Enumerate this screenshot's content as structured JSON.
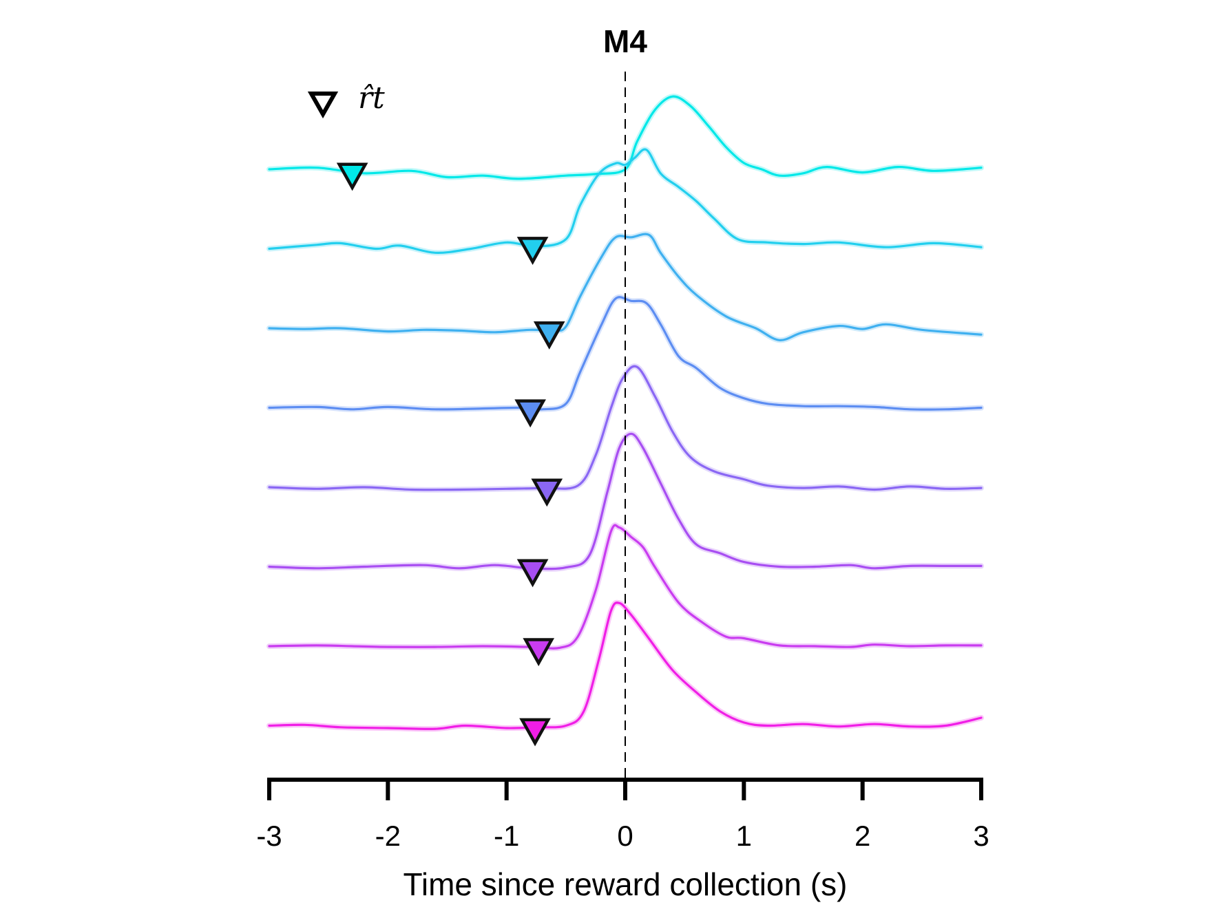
{
  "chart_data": {
    "type": "line",
    "title": "M4",
    "xlabel": "Time since reward collection (s)",
    "ylabel": "",
    "xlim": [
      -3,
      3
    ],
    "xticks": [
      -3,
      -2,
      -1,
      0,
      1,
      2,
      3
    ],
    "xtick_labels": [
      "-3",
      "-2",
      "-1",
      "0",
      "1",
      "2",
      "3"
    ],
    "reference_line": {
      "x": 0,
      "style": "dashed"
    },
    "legend": {
      "marker": "triangle-down-outline",
      "label": "r̂t",
      "placement": "top-left"
    },
    "grid": false,
    "layout": "stacked-offset",
    "series": [
      {
        "color": "#00e8e8",
        "marker_x": -2.3,
        "points": [
          [
            -3,
            0.0
          ],
          [
            -2.6,
            0.02
          ],
          [
            -2.2,
            -0.05
          ],
          [
            -1.8,
            -0.02
          ],
          [
            -1.5,
            -0.1
          ],
          [
            -1.2,
            -0.08
          ],
          [
            -0.9,
            -0.12
          ],
          [
            -0.5,
            -0.08
          ],
          [
            -0.25,
            -0.06
          ],
          [
            0.0,
            0.0
          ],
          [
            0.1,
            0.35
          ],
          [
            0.25,
            0.75
          ],
          [
            0.4,
            0.92
          ],
          [
            0.55,
            0.8
          ],
          [
            0.7,
            0.55
          ],
          [
            0.85,
            0.28
          ],
          [
            1.0,
            0.08
          ],
          [
            1.15,
            0.0
          ],
          [
            1.3,
            -0.08
          ],
          [
            1.5,
            -0.05
          ],
          [
            1.7,
            0.03
          ],
          [
            2.0,
            -0.04
          ],
          [
            2.3,
            0.03
          ],
          [
            2.6,
            -0.02
          ],
          [
            3.0,
            0.02
          ]
        ]
      },
      {
        "color": "#22cfee",
        "marker_x": -0.78,
        "points": [
          [
            -3,
            0.0
          ],
          [
            -2.6,
            0.05
          ],
          [
            -2.4,
            0.07
          ],
          [
            -2.1,
            0.0
          ],
          [
            -1.9,
            0.04
          ],
          [
            -1.6,
            -0.05
          ],
          [
            -1.3,
            0.0
          ],
          [
            -1.0,
            0.08
          ],
          [
            -0.75,
            0.03
          ],
          [
            -0.5,
            0.12
          ],
          [
            -0.38,
            0.55
          ],
          [
            -0.22,
            0.95
          ],
          [
            -0.08,
            1.08
          ],
          [
            0.0,
            1.06
          ],
          [
            0.08,
            1.15
          ],
          [
            0.18,
            1.25
          ],
          [
            0.3,
            0.95
          ],
          [
            0.45,
            0.78
          ],
          [
            0.6,
            0.6
          ],
          [
            0.75,
            0.38
          ],
          [
            0.95,
            0.12
          ],
          [
            1.2,
            0.08
          ],
          [
            1.5,
            0.06
          ],
          [
            1.8,
            0.08
          ],
          [
            2.2,
            0.02
          ],
          [
            2.6,
            0.07
          ],
          [
            3.0,
            0.02
          ]
        ]
      },
      {
        "color": "#3fb0f0",
        "marker_x": -0.64,
        "points": [
          [
            -3,
            0.0
          ],
          [
            -2.7,
            -0.01
          ],
          [
            -2.4,
            0.0
          ],
          [
            -2.0,
            -0.04
          ],
          [
            -1.7,
            -0.02
          ],
          [
            -1.4,
            -0.03
          ],
          [
            -1.1,
            -0.05
          ],
          [
            -0.8,
            -0.02
          ],
          [
            -0.6,
            -0.03
          ],
          [
            -0.5,
            0.02
          ],
          [
            -0.38,
            0.4
          ],
          [
            -0.2,
            0.9
          ],
          [
            -0.08,
            1.15
          ],
          [
            0.05,
            1.15
          ],
          [
            0.2,
            1.18
          ],
          [
            0.3,
            0.95
          ],
          [
            0.45,
            0.65
          ],
          [
            0.6,
            0.42
          ],
          [
            0.85,
            0.15
          ],
          [
            1.1,
            0.0
          ],
          [
            1.3,
            -0.15
          ],
          [
            1.5,
            -0.05
          ],
          [
            1.8,
            0.03
          ],
          [
            2.0,
            -0.01
          ],
          [
            2.2,
            0.05
          ],
          [
            2.5,
            -0.02
          ],
          [
            3.0,
            -0.08
          ]
        ]
      },
      {
        "color": "#5c8df2",
        "marker_x": -0.8,
        "points": [
          [
            -3,
            0.0
          ],
          [
            -2.6,
            0.01
          ],
          [
            -2.3,
            -0.02
          ],
          [
            -2.0,
            0.01
          ],
          [
            -1.6,
            -0.02
          ],
          [
            -1.2,
            -0.01
          ],
          [
            -0.9,
            0.0
          ],
          [
            -0.7,
            -0.02
          ],
          [
            -0.5,
            0.05
          ],
          [
            -0.38,
            0.45
          ],
          [
            -0.2,
            1.05
          ],
          [
            -0.08,
            1.38
          ],
          [
            0.05,
            1.35
          ],
          [
            0.18,
            1.32
          ],
          [
            0.3,
            1.05
          ],
          [
            0.45,
            0.65
          ],
          [
            0.6,
            0.5
          ],
          [
            0.8,
            0.25
          ],
          [
            1.0,
            0.12
          ],
          [
            1.2,
            0.05
          ],
          [
            1.5,
            0.02
          ],
          [
            1.8,
            0.02
          ],
          [
            2.1,
            0.01
          ],
          [
            2.4,
            -0.02
          ],
          [
            2.7,
            -0.02
          ],
          [
            3.0,
            0.0
          ]
        ]
      },
      {
        "color": "#8a67f4",
        "marker_x": -0.66,
        "points": [
          [
            -3,
            0.0
          ],
          [
            -2.6,
            -0.02
          ],
          [
            -2.2,
            0.0
          ],
          [
            -1.8,
            -0.03
          ],
          [
            -1.4,
            -0.03
          ],
          [
            -1.0,
            -0.02
          ],
          [
            -0.7,
            -0.01
          ],
          [
            -0.4,
            0.02
          ],
          [
            -0.25,
            0.4
          ],
          [
            -0.12,
            1.0
          ],
          [
            -0.02,
            1.38
          ],
          [
            0.1,
            1.52
          ],
          [
            0.25,
            1.15
          ],
          [
            0.4,
            0.7
          ],
          [
            0.55,
            0.38
          ],
          [
            0.75,
            0.2
          ],
          [
            1.0,
            0.1
          ],
          [
            1.2,
            0.02
          ],
          [
            1.5,
            -0.01
          ],
          [
            1.8,
            0.01
          ],
          [
            2.1,
            -0.03
          ],
          [
            2.4,
            0.01
          ],
          [
            2.7,
            -0.02
          ],
          [
            3.0,
            -0.01
          ]
        ]
      },
      {
        "color": "#a84ef2",
        "marker_x": -0.78,
        "points": [
          [
            -3,
            0.0
          ],
          [
            -2.6,
            -0.02
          ],
          [
            -2.2,
            0.0
          ],
          [
            -1.7,
            0.02
          ],
          [
            -1.4,
            -0.02
          ],
          [
            -1.1,
            0.02
          ],
          [
            -0.8,
            -0.02
          ],
          [
            -0.5,
            -0.01
          ],
          [
            -0.3,
            0.15
          ],
          [
            -0.15,
            0.95
          ],
          [
            -0.05,
            1.5
          ],
          [
            0.05,
            1.68
          ],
          [
            0.15,
            1.5
          ],
          [
            0.3,
            1.05
          ],
          [
            0.45,
            0.6
          ],
          [
            0.6,
            0.28
          ],
          [
            0.8,
            0.17
          ],
          [
            1.0,
            0.06
          ],
          [
            1.3,
            0.0
          ],
          [
            1.6,
            0.0
          ],
          [
            1.9,
            0.02
          ],
          [
            2.1,
            -0.02
          ],
          [
            2.4,
            0.01
          ],
          [
            2.7,
            0.01
          ],
          [
            3.0,
            0.01
          ]
        ]
      },
      {
        "color": "#c93cf0",
        "marker_x": -0.73,
        "points": [
          [
            -3,
            0.0
          ],
          [
            -2.6,
            0.01
          ],
          [
            -2.3,
            0.0
          ],
          [
            -2.0,
            -0.01
          ],
          [
            -1.6,
            -0.01
          ],
          [
            -1.2,
            0.0
          ],
          [
            -0.8,
            -0.01
          ],
          [
            -0.55,
            -0.02
          ],
          [
            -0.4,
            0.12
          ],
          [
            -0.25,
            0.7
          ],
          [
            -0.12,
            1.45
          ],
          [
            -0.05,
            1.5
          ],
          [
            0.05,
            1.38
          ],
          [
            0.15,
            1.25
          ],
          [
            0.25,
            1.0
          ],
          [
            0.45,
            0.55
          ],
          [
            0.65,
            0.3
          ],
          [
            0.85,
            0.12
          ],
          [
            1.0,
            0.1
          ],
          [
            1.3,
            0.01
          ],
          [
            1.6,
            0.0
          ],
          [
            1.9,
            -0.01
          ],
          [
            2.1,
            0.02
          ],
          [
            2.4,
            0.0
          ],
          [
            2.7,
            0.01
          ],
          [
            3.0,
            0.01
          ]
        ]
      },
      {
        "color": "#f01ee6",
        "marker_x": -0.76,
        "points": [
          [
            -3,
            0.0
          ],
          [
            -2.7,
            0.01
          ],
          [
            -2.4,
            -0.02
          ],
          [
            -2.0,
            -0.03
          ],
          [
            -1.6,
            -0.04
          ],
          [
            -1.35,
            0.0
          ],
          [
            -1.0,
            -0.03
          ],
          [
            -0.75,
            -0.02
          ],
          [
            -0.5,
            0.0
          ],
          [
            -0.35,
            0.18
          ],
          [
            -0.22,
            0.85
          ],
          [
            -0.12,
            1.45
          ],
          [
            -0.05,
            1.55
          ],
          [
            0.05,
            1.4
          ],
          [
            0.2,
            1.1
          ],
          [
            0.4,
            0.7
          ],
          [
            0.6,
            0.42
          ],
          [
            0.8,
            0.18
          ],
          [
            1.0,
            0.04
          ],
          [
            1.2,
            0.0
          ],
          [
            1.5,
            0.02
          ],
          [
            1.8,
            -0.01
          ],
          [
            2.1,
            0.02
          ],
          [
            2.4,
            -0.01
          ],
          [
            2.7,
            0.0
          ],
          [
            3.0,
            0.1
          ]
        ]
      }
    ]
  }
}
